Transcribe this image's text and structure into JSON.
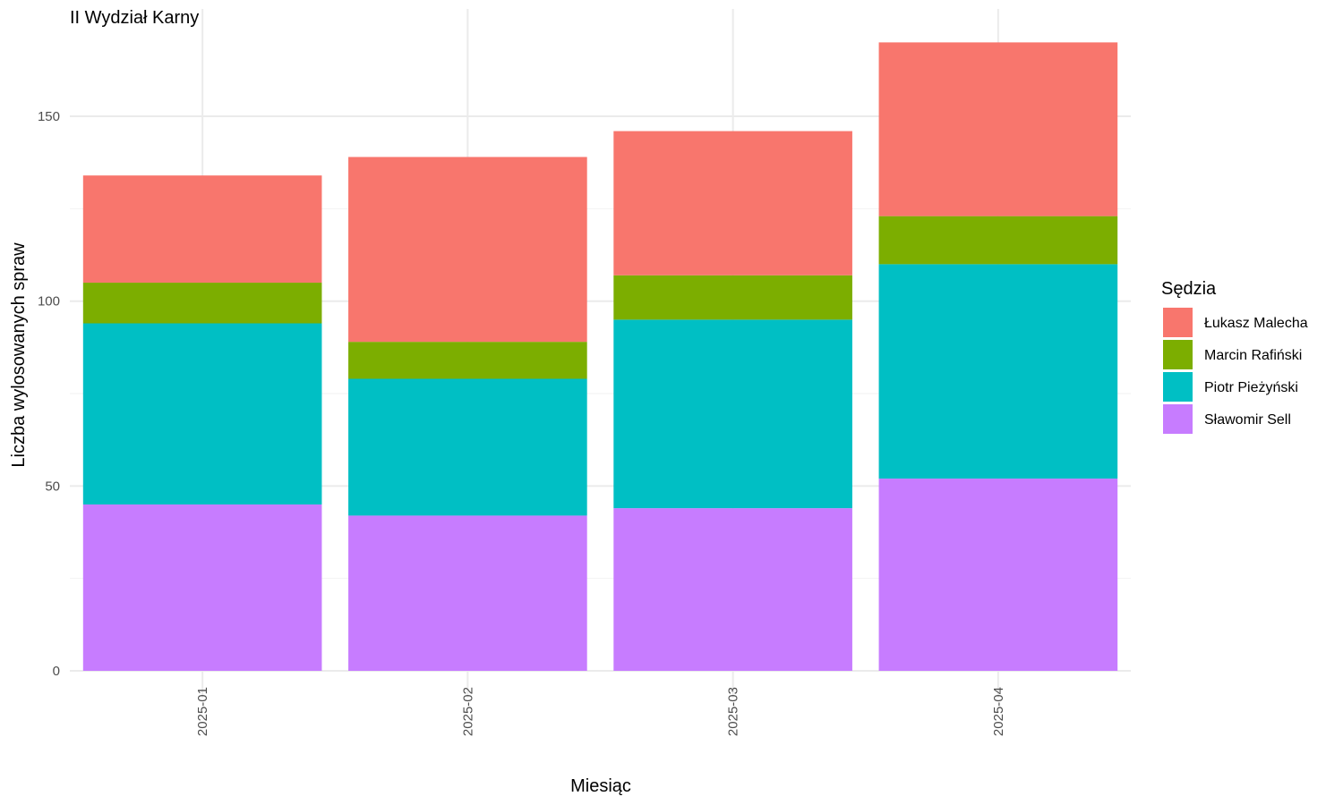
{
  "chart_data": {
    "type": "bar",
    "stacked": true,
    "title": "II Wydział Karny",
    "xlabel": "Miesiąc",
    "ylabel": "Liczba wylosowanych spraw",
    "categories": [
      "2025-01",
      "2025-02",
      "2025-03",
      "2025-04"
    ],
    "ylim": [
      0,
      170
    ],
    "yticks": [
      0,
      50,
      100,
      150
    ],
    "grid": true,
    "legend": {
      "title": "Sędzia",
      "position": "right"
    },
    "series": [
      {
        "name": "Sławomir Sell",
        "color": "#C77CFF",
        "values": [
          45,
          42,
          44,
          52
        ]
      },
      {
        "name": "Piotr Pieżyński",
        "color": "#00BFC4",
        "values": [
          49,
          37,
          51,
          58
        ]
      },
      {
        "name": "Marcin Rafiński",
        "color": "#7CAE00",
        "values": [
          11,
          10,
          12,
          13
        ]
      },
      {
        "name": "Łukasz Malecha",
        "color": "#F8766D",
        "values": [
          29,
          50,
          39,
          47
        ]
      }
    ],
    "legend_order": [
      "Łukasz Malecha",
      "Marcin Rafiński",
      "Piotr Pieżyński",
      "Sławomir Sell"
    ]
  }
}
